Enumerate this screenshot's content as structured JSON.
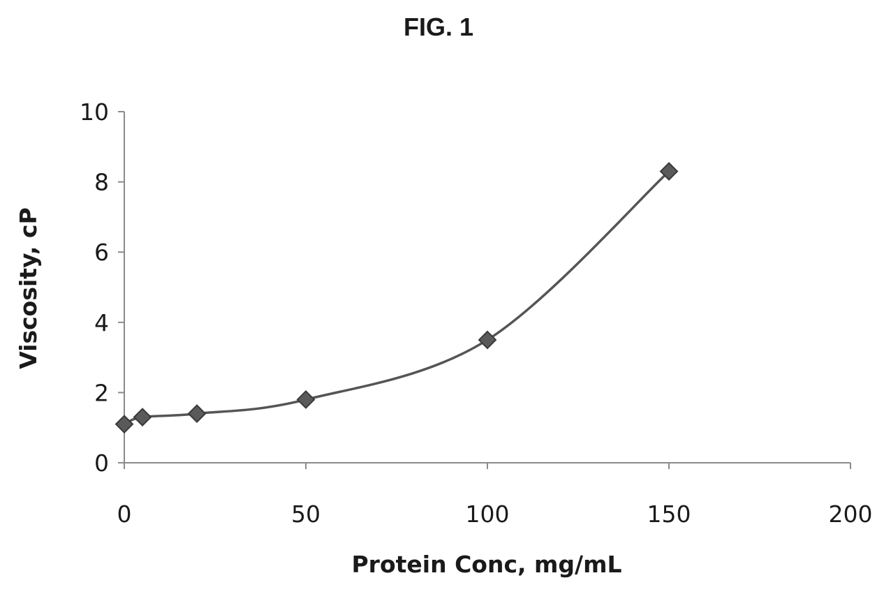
{
  "figure": {
    "title": "FIG. 1"
  },
  "chart_data": {
    "type": "line",
    "title": "FIG. 1",
    "xlabel": "Protein Conc, mg/mL",
    "ylabel": "Viscosity, cP",
    "xlim": [
      0,
      200
    ],
    "ylim": [
      0,
      10
    ],
    "x_ticks": [
      0,
      50,
      100,
      150,
      200
    ],
    "y_ticks": [
      0,
      2,
      4,
      6,
      8,
      10
    ],
    "x_tick_labels": [
      "0",
      "50",
      "100",
      "150",
      "200"
    ],
    "y_tick_labels": [
      "0",
      "2",
      "4",
      "6",
      "8",
      "10"
    ],
    "grid": false,
    "legend": "none",
    "marker": "diamond",
    "line_style": "smooth",
    "series": [
      {
        "color": "#555555",
        "x": [
          0,
          5,
          20,
          50,
          100,
          150
        ],
        "y": [
          1.1,
          1.3,
          1.4,
          1.8,
          3.5,
          8.3
        ]
      }
    ]
  }
}
